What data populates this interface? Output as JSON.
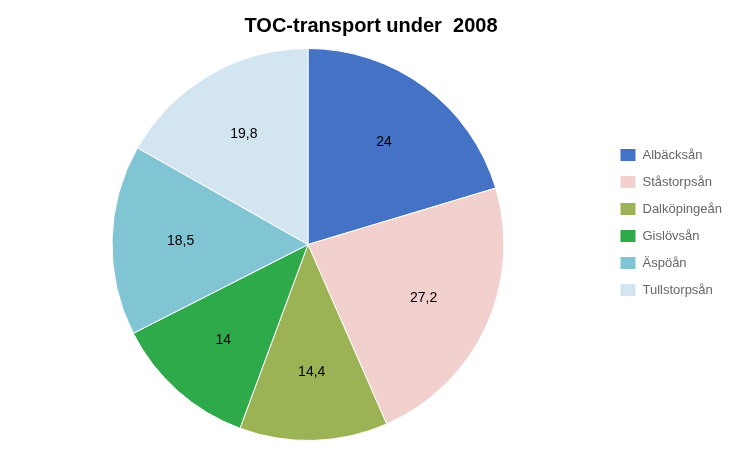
{
  "chart_data": {
    "type": "pie",
    "title": "TOC-transport under  2008",
    "categories": [
      "Albäcksån",
      "Ståstorpsån",
      "Dalköpingeån",
      "Gislövsån",
      "Äspöån",
      "Tullstorpsån"
    ],
    "values": [
      24,
      27.2,
      14.4,
      14,
      18.5,
      19.8
    ],
    "value_labels": [
      "24",
      "27,2",
      "14,4",
      "14",
      "18,5",
      "19,8"
    ],
    "colors": [
      "#4472C4",
      "#F2D0CE",
      "#9BB355",
      "#2EAA4A",
      "#81C5D5",
      "#D4E5F2"
    ],
    "data_labels": true,
    "legend": "right"
  }
}
